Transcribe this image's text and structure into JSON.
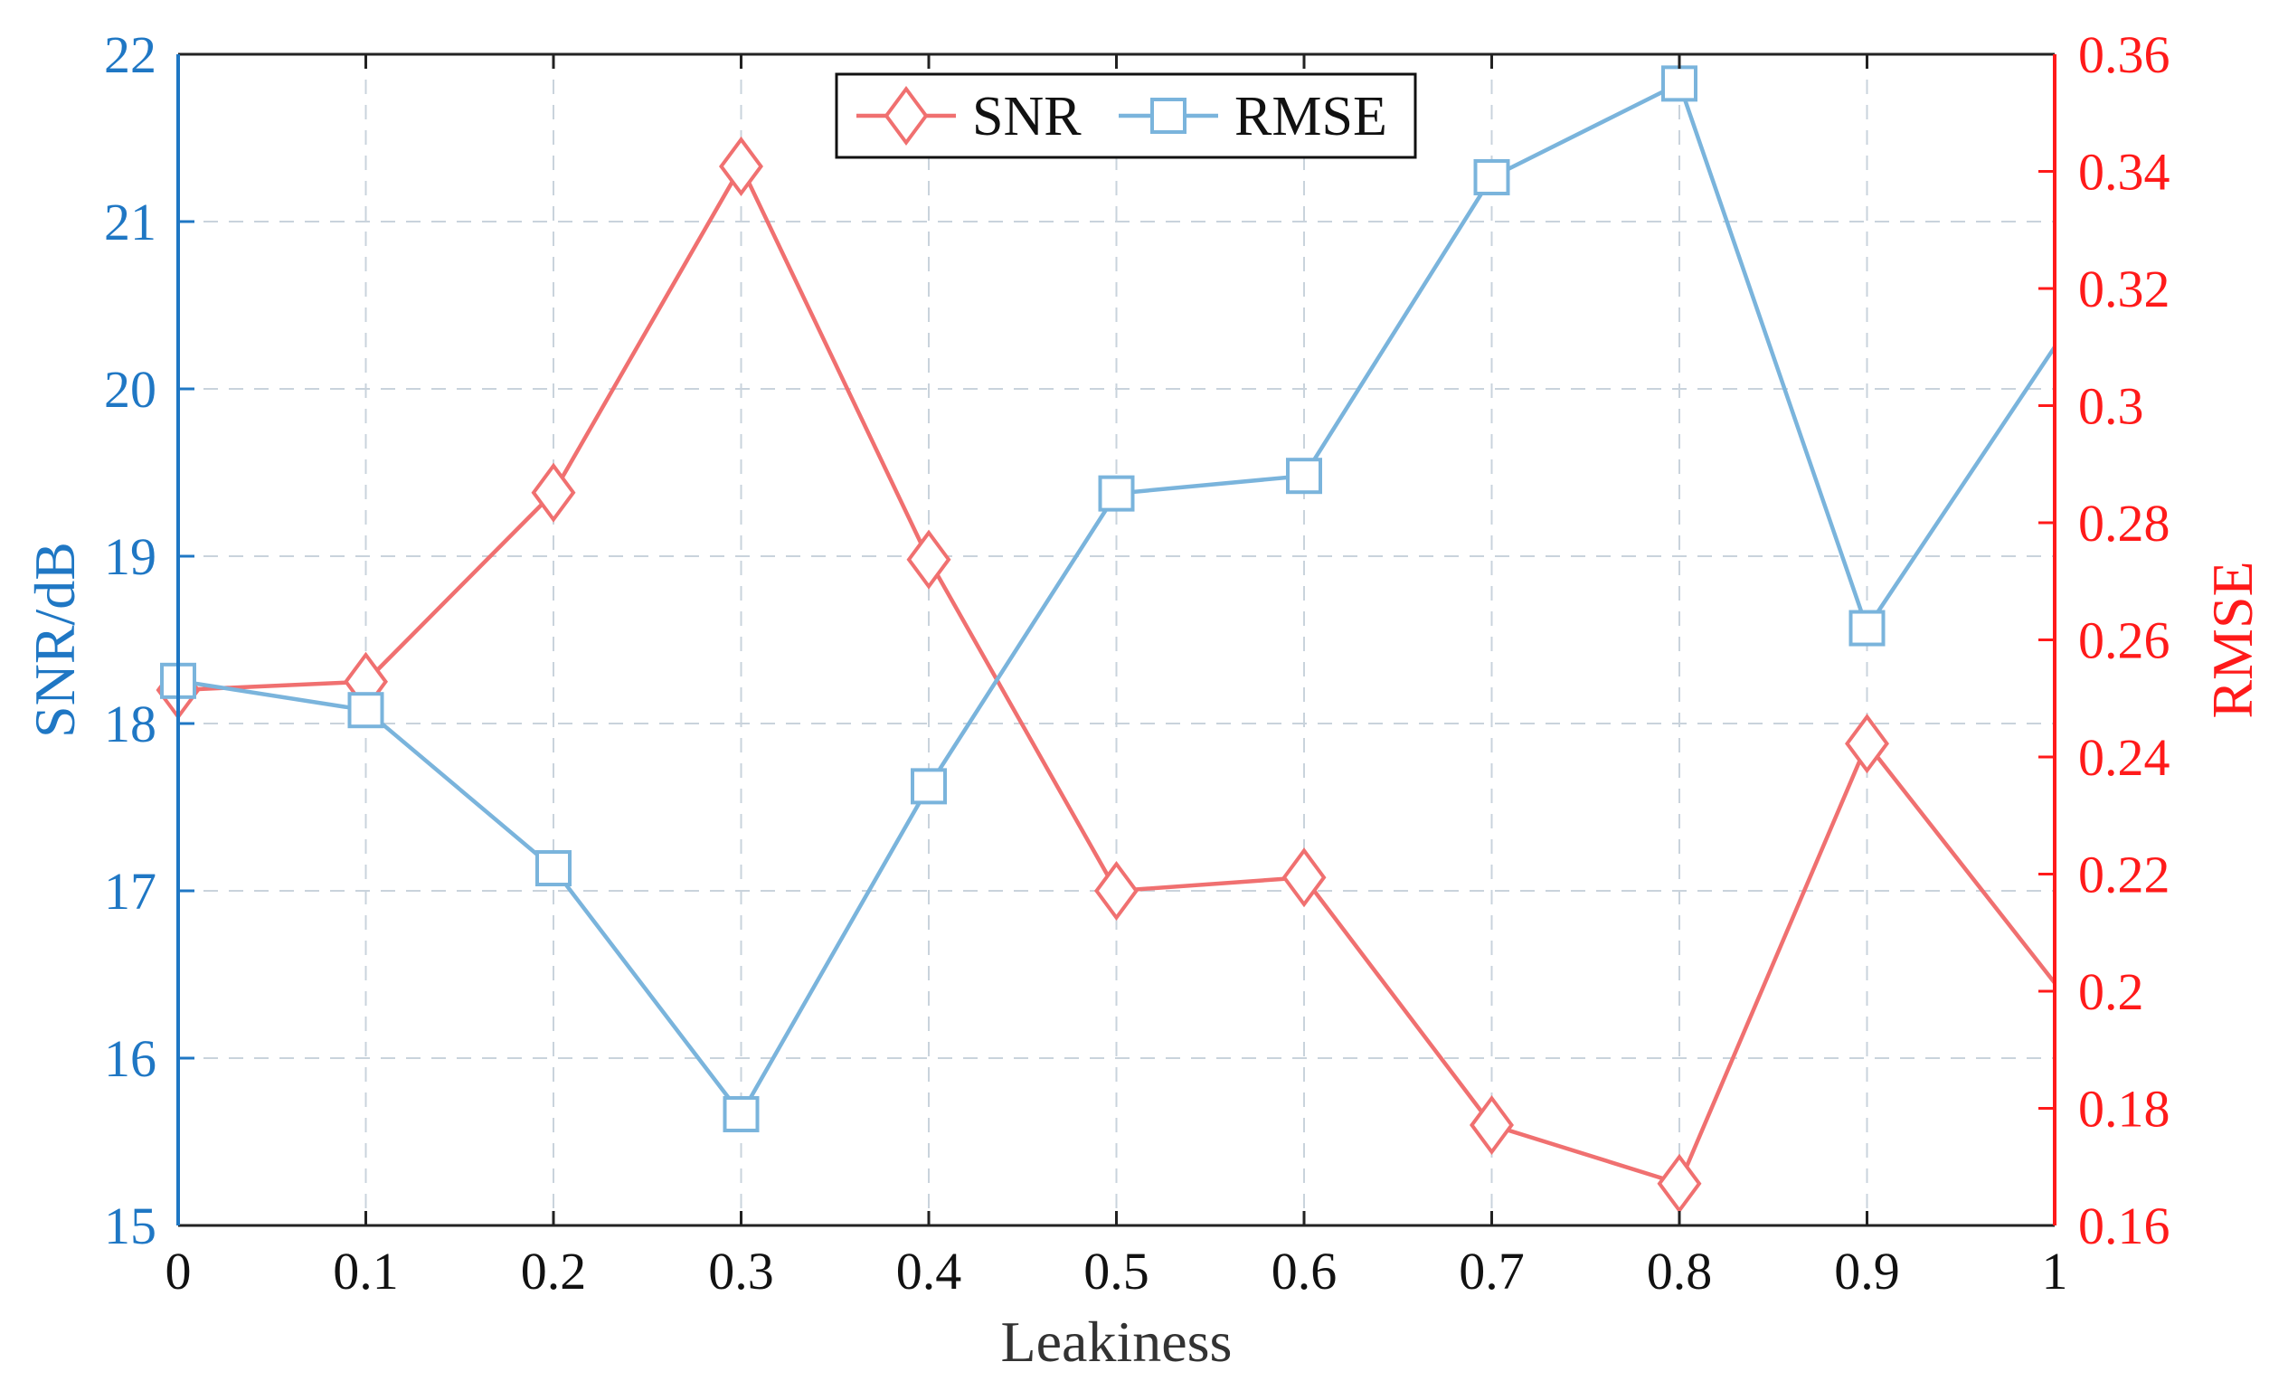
{
  "chart_data": {
    "type": "line",
    "x": [
      0,
      0.1,
      0.2,
      0.3,
      0.4,
      0.5,
      0.6,
      0.7,
      0.8,
      0.9,
      1
    ],
    "x_tick_labels": [
      "0",
      "0.1",
      "0.2",
      "0.3",
      "0.4",
      "0.5",
      "0.6",
      "0.7",
      "0.8",
      "0.9",
      "1"
    ],
    "xlabel": "Leakiness",
    "xlim": [
      0,
      1
    ],
    "y_left": {
      "label": "SNR/dB",
      "lim": [
        15,
        22
      ],
      "tick_labels": [
        "15",
        "16",
        "17",
        "18",
        "19",
        "20",
        "21",
        "22"
      ],
      "color": "#1f77c4"
    },
    "y_right": {
      "label": "RMSE",
      "lim": [
        0.16,
        0.36
      ],
      "tick_labels": [
        "0.16",
        "0.18",
        "0.2",
        "0.22",
        "0.24",
        "0.26",
        "0.28",
        "0.3",
        "0.32",
        "0.34",
        "0.36"
      ],
      "color": "#ff1a1a"
    },
    "series": [
      {
        "name": "SNR",
        "axis": "left",
        "marker": "diamond",
        "color": "#f07070",
        "values": [
          18.2,
          18.25,
          19.38,
          21.33,
          18.98,
          17.0,
          17.08,
          15.6,
          15.25,
          17.88,
          16.45
        ]
      },
      {
        "name": "RMSE",
        "axis": "right",
        "marker": "square",
        "color": "#7ab4dc",
        "values": [
          0.253,
          0.248,
          0.221,
          0.179,
          0.235,
          0.285,
          0.288,
          0.339,
          0.355,
          0.262,
          0.31
        ]
      }
    ],
    "grid": true,
    "legend_position": "top-center"
  }
}
